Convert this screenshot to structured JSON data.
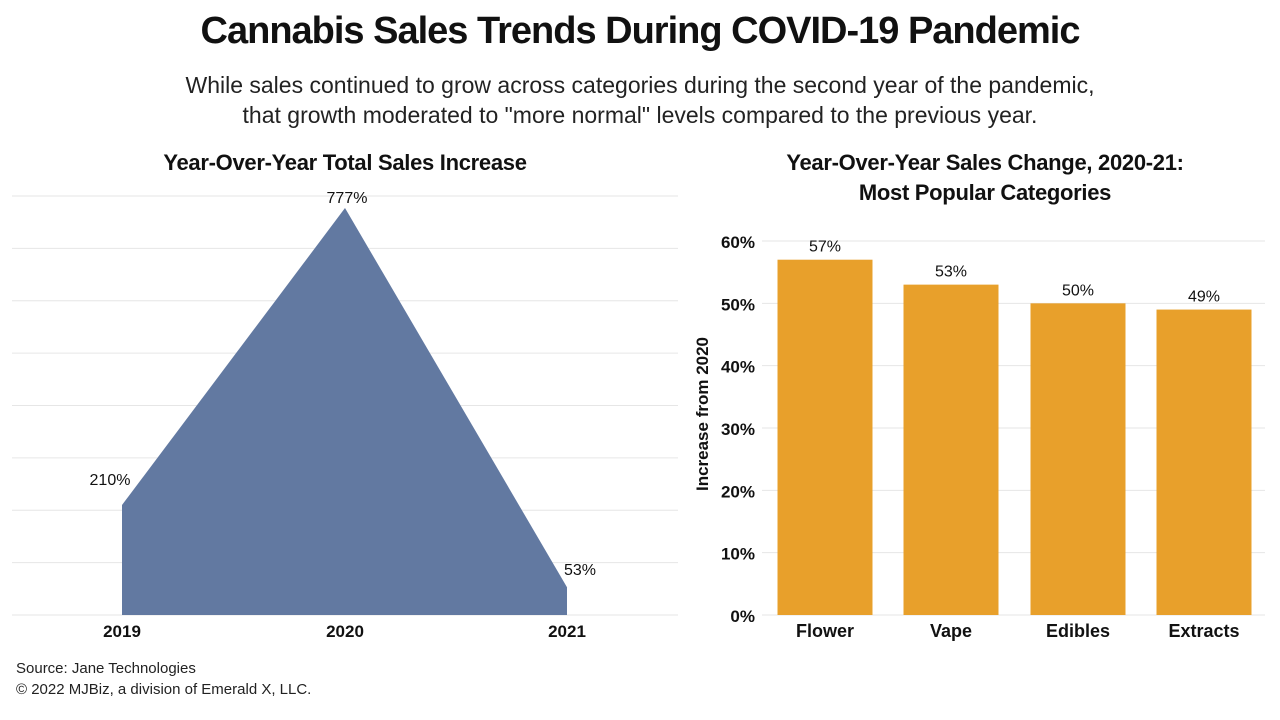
{
  "title": "Cannabis Sales Trends During COVID-19 Pandemic",
  "subtitle": {
    "line1": "While sales continued to grow across categories during the second year of the pandemic,",
    "line2": "that growth moderated to \"more normal\" levels compared to the previous year."
  },
  "colors": {
    "area": "#6279a1",
    "bar": "#e8a02b",
    "grid": "#e6e6e6"
  },
  "chart_data": [
    {
      "type": "area",
      "title": "Year-Over-Year Total Sales Increase",
      "categories": [
        "2019",
        "2020",
        "2021"
      ],
      "values": [
        210,
        777,
        53
      ],
      "labels": [
        "210%",
        "777%",
        "53%"
      ],
      "ylim": [
        0,
        800
      ],
      "grid": true,
      "xlabel": "",
      "ylabel": ""
    },
    {
      "type": "bar",
      "title_line1": "Year-Over-Year Sales Change, 2020-21:",
      "title_line2": "Most Popular Categories",
      "categories": [
        "Flower",
        "Vape",
        "Edibles",
        "Extracts"
      ],
      "values": [
        57,
        53,
        50,
        49
      ],
      "labels": [
        "57%",
        "53%",
        "50%",
        "49%"
      ],
      "ylim": [
        0,
        60
      ],
      "yticks": [
        "0%",
        "10%",
        "20%",
        "30%",
        "40%",
        "50%",
        "60%"
      ],
      "ylabel": "Increase from 2020",
      "grid": true
    }
  ],
  "footer": {
    "source": "Source: Jane Technologies",
    "copyright": "© 2022 MJBiz, a division of Emerald X, LLC."
  }
}
